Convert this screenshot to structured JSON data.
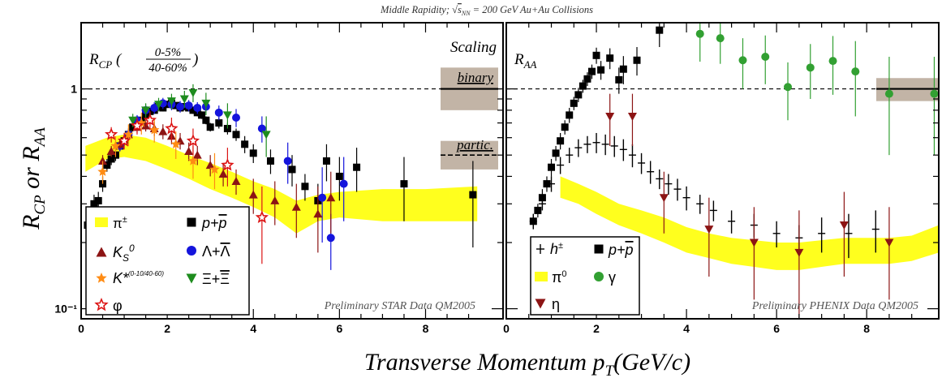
{
  "figure": {
    "top_title": "Middle Rapidity; √s_NN = 200 GeV Au+Au Collisions",
    "ylabel": "R_CP or R_AA",
    "xlabel": "Transverse Momentum p_T(GeV/c)",
    "y_ticks": [
      "10⁻¹",
      "1"
    ],
    "x_ticks": [
      "0",
      "2",
      "4",
      "6",
      "8"
    ]
  },
  "chart_data": [
    {
      "type": "scatter",
      "panel": "left",
      "title": "R_CP (0-5% / 40-60%)",
      "corner_label": "Scaling",
      "band_labels": [
        "binary",
        "partic."
      ],
      "credit": "Preliminary STAR Data QM2005",
      "xlim": [
        0,
        9.8
      ],
      "ylim": [
        0.09,
        2.0
      ],
      "yscale": "log",
      "reference_line": 1.0,
      "bands": [
        {
          "label": "binary",
          "y_center": 1.0,
          "y_low": 0.8,
          "y_high": 1.25
        },
        {
          "label": "partic.",
          "y_center": 0.5,
          "y_low": 0.43,
          "y_high": 0.58
        }
      ],
      "pi_band": {
        "x": [
          0.1,
          0.6,
          1.0,
          1.5,
          2.0,
          2.5,
          3.0,
          3.5,
          4.0,
          4.5,
          5.0,
          5.5,
          6.0,
          7.0,
          8.0,
          9.2
        ],
        "y_low": [
          0.42,
          0.48,
          0.49,
          0.47,
          0.43,
          0.39,
          0.35,
          0.32,
          0.29,
          0.26,
          0.22,
          0.25,
          0.26,
          0.25,
          0.25,
          0.25
        ],
        "y_high": [
          0.55,
          0.6,
          0.62,
          0.6,
          0.55,
          0.5,
          0.46,
          0.42,
          0.38,
          0.35,
          0.31,
          0.33,
          0.34,
          0.35,
          0.35,
          0.36
        ]
      },
      "legend": [
        "π±",
        "p+p̄",
        "K_S^0",
        "Λ+Λ̄",
        "K*(0-10 / 40-60)",
        "Ξ+Ξ̄",
        "φ"
      ],
      "series": [
        {
          "name": "p+p̄",
          "marker": "square",
          "color": "#000000",
          "x": [
            0.15,
            0.3,
            0.4,
            0.5,
            0.6,
            0.7,
            0.8,
            0.9,
            1.0,
            1.1,
            1.2,
            1.3,
            1.4,
            1.5,
            1.6,
            1.7,
            1.8,
            1.9,
            2.0,
            2.1,
            2.2,
            2.3,
            2.4,
            2.5,
            2.6,
            2.7,
            2.8,
            2.9,
            3.0,
            3.2,
            3.4,
            3.6,
            3.8,
            4.0,
            4.4,
            4.9,
            5.2,
            5.5,
            5.7,
            6.0,
            6.4,
            7.5,
            9.1
          ],
          "y": [
            0.24,
            0.3,
            0.31,
            0.37,
            0.45,
            0.48,
            0.5,
            0.55,
            0.58,
            0.62,
            0.67,
            0.7,
            0.72,
            0.76,
            0.79,
            0.8,
            0.83,
            0.82,
            0.85,
            0.86,
            0.84,
            0.82,
            0.83,
            0.82,
            0.8,
            0.78,
            0.76,
            0.72,
            0.67,
            0.7,
            0.66,
            0.62,
            0.56,
            0.51,
            0.47,
            0.43,
            0.36,
            0.31,
            0.47,
            0.4,
            0.44,
            0.37,
            0.33
          ],
          "err": [
            0.03,
            0.03,
            0.03,
            0.03,
            0.03,
            0.03,
            0.03,
            0.03,
            0.03,
            0.03,
            0.03,
            0.03,
            0.03,
            0.03,
            0.03,
            0.03,
            0.03,
            0.03,
            0.03,
            0.03,
            0.03,
            0.03,
            0.03,
            0.03,
            0.03,
            0.03,
            0.03,
            0.03,
            0.03,
            0.04,
            0.04,
            0.04,
            0.05,
            0.05,
            0.06,
            0.07,
            0.05,
            0.06,
            0.09,
            0.09,
            0.1,
            0.12,
            0.14
          ]
        },
        {
          "name": "Λ+Λ̄",
          "marker": "circle",
          "color": "#1414dc",
          "x": [
            0.9,
            1.1,
            1.3,
            1.5,
            1.7,
            1.9,
            2.1,
            2.3,
            2.5,
            2.7,
            2.9,
            3.2,
            3.6,
            4.2,
            4.8,
            5.6,
            5.8,
            6.1
          ],
          "y": [
            0.55,
            0.62,
            0.72,
            0.8,
            0.82,
            0.86,
            0.85,
            0.83,
            0.84,
            0.82,
            0.83,
            0.78,
            0.74,
            0.66,
            0.47,
            0.32,
            0.21,
            0.37
          ],
          "err": [
            0.03,
            0.04,
            0.04,
            0.05,
            0.05,
            0.05,
            0.05,
            0.05,
            0.05,
            0.05,
            0.05,
            0.06,
            0.07,
            0.09,
            0.1,
            0.12,
            0.06,
            0.12
          ]
        },
        {
          "name": "Ξ+Ξ̄",
          "marker": "triangle-down",
          "color": "#1e8c1e",
          "x": [
            1.2,
            1.5,
            1.8,
            2.1,
            2.4,
            2.6,
            2.9,
            3.4,
            4.3
          ],
          "y": [
            0.72,
            0.8,
            0.85,
            0.88,
            0.9,
            0.96,
            0.86,
            0.76,
            0.62
          ],
          "err": [
            0.05,
            0.06,
            0.06,
            0.07,
            0.08,
            0.09,
            0.1,
            0.1,
            0.13
          ]
        },
        {
          "name": "K_S^0",
          "marker": "triangle-up",
          "color": "#8c1414",
          "x": [
            0.5,
            0.7,
            0.9,
            1.1,
            1.3,
            1.5,
            1.7,
            1.9,
            2.1,
            2.3,
            2.5,
            2.7,
            3.0,
            3.3,
            3.6,
            4.0,
            4.5,
            5.0,
            5.5,
            5.8
          ],
          "y": [
            0.47,
            0.52,
            0.56,
            0.62,
            0.67,
            0.68,
            0.66,
            0.64,
            0.61,
            0.58,
            0.52,
            0.5,
            0.45,
            0.41,
            0.38,
            0.33,
            0.31,
            0.29,
            0.27,
            0.32
          ],
          "err": [
            0.03,
            0.03,
            0.03,
            0.04,
            0.04,
            0.04,
            0.05,
            0.05,
            0.05,
            0.05,
            0.05,
            0.05,
            0.05,
            0.05,
            0.05,
            0.06,
            0.07,
            0.08,
            0.09,
            0.1
          ]
        },
        {
          "name": "K*(0-10 / 40-60)",
          "marker": "star",
          "color": "#ff8c14",
          "x": [
            0.5,
            0.8,
            1.1,
            1.4,
            1.7,
            2.2,
            2.6,
            3.1
          ],
          "y": [
            0.42,
            0.55,
            0.62,
            0.7,
            0.65,
            0.56,
            0.47,
            0.43
          ],
          "err": [
            0.05,
            0.06,
            0.07,
            0.08,
            0.08,
            0.08,
            0.08,
            0.08
          ]
        },
        {
          "name": "φ",
          "marker": "star-open",
          "color": "#dc1414",
          "x": [
            0.7,
            1.0,
            1.3,
            1.6,
            2.1,
            2.6,
            3.4,
            4.2
          ],
          "y": [
            0.62,
            0.58,
            0.68,
            0.72,
            0.66,
            0.58,
            0.45,
            0.26
          ],
          "err": [
            0.05,
            0.05,
            0.06,
            0.07,
            0.08,
            0.08,
            0.09,
            0.1
          ]
        }
      ]
    },
    {
      "type": "scatter",
      "panel": "right",
      "title": "R_AA",
      "credit": "Preliminary PHENIX Data QM2005",
      "xlim": [
        0,
        9.6
      ],
      "ylim": [
        0.09,
        2.0
      ],
      "yscale": "log",
      "reference_line": 1.0,
      "bands": [
        {
          "label": "",
          "y_center": 1.0,
          "y_low": 0.88,
          "y_high": 1.12
        }
      ],
      "pi_band": {
        "x": [
          1.2,
          1.6,
          2.0,
          2.5,
          3.0,
          3.5,
          4.0,
          4.5,
          5.0,
          5.5,
          6.0,
          6.5,
          7.0,
          7.5,
          8.0,
          8.5,
          9.0,
          9.6
        ],
        "y_low": [
          0.32,
          0.3,
          0.27,
          0.24,
          0.22,
          0.2,
          0.18,
          0.17,
          0.16,
          0.155,
          0.15,
          0.15,
          0.155,
          0.16,
          0.16,
          0.16,
          0.165,
          0.18
        ],
        "y_high": [
          0.4,
          0.37,
          0.34,
          0.3,
          0.28,
          0.26,
          0.235,
          0.22,
          0.21,
          0.205,
          0.2,
          0.2,
          0.205,
          0.21,
          0.21,
          0.21,
          0.215,
          0.24
        ]
      },
      "legend": [
        "h±",
        "p+p̄",
        "π⁰",
        "γ",
        "η"
      ],
      "series": [
        {
          "name": "p+p̄",
          "marker": "square",
          "color": "#000000",
          "x": [
            0.6,
            0.7,
            0.8,
            0.9,
            1.0,
            1.1,
            1.2,
            1.3,
            1.4,
            1.5,
            1.6,
            1.7,
            1.8,
            1.9,
            2.0,
            2.1,
            2.3,
            2.5,
            2.6,
            2.9,
            3.4
          ],
          "y": [
            0.25,
            0.28,
            0.32,
            0.37,
            0.44,
            0.51,
            0.58,
            0.67,
            0.76,
            0.86,
            0.94,
            1.03,
            1.11,
            1.2,
            1.42,
            1.22,
            1.38,
            1.1,
            1.23,
            1.35,
            1.85
          ],
          "err": [
            0.02,
            0.02,
            0.03,
            0.03,
            0.04,
            0.04,
            0.05,
            0.05,
            0.06,
            0.06,
            0.07,
            0.07,
            0.08,
            0.09,
            0.12,
            0.12,
            0.15,
            0.15,
            0.18,
            0.2,
            0.3
          ]
        },
        {
          "name": "h±",
          "marker": "cross",
          "color": "#000000",
          "x": [
            0.6,
            0.8,
            1.0,
            1.2,
            1.4,
            1.6,
            1.8,
            2.0,
            2.2,
            2.4,
            2.6,
            2.8,
            3.0,
            3.2,
            3.4,
            3.6,
            3.8,
            4.0,
            4.3,
            4.6,
            5.0,
            5.5,
            6.0,
            6.5,
            7.0,
            7.6,
            8.2
          ],
          "y": [
            0.25,
            0.3,
            0.37,
            0.45,
            0.5,
            0.54,
            0.56,
            0.57,
            0.56,
            0.55,
            0.53,
            0.5,
            0.46,
            0.42,
            0.39,
            0.37,
            0.35,
            0.32,
            0.3,
            0.28,
            0.25,
            0.24,
            0.22,
            0.21,
            0.22,
            0.22,
            0.23
          ],
          "err": [
            0.02,
            0.02,
            0.03,
            0.04,
            0.04,
            0.05,
            0.05,
            0.06,
            0.06,
            0.06,
            0.06,
            0.06,
            0.05,
            0.05,
            0.04,
            0.04,
            0.04,
            0.04,
            0.03,
            0.03,
            0.03,
            0.03,
            0.03,
            0.03,
            0.04,
            0.05,
            0.05
          ]
        },
        {
          "name": "η",
          "marker": "triangle-down",
          "color": "#8c1414",
          "x": [
            2.3,
            2.8,
            3.5,
            4.5,
            5.5,
            6.5,
            7.5,
            8.5
          ],
          "y": [
            0.75,
            0.75,
            0.32,
            0.23,
            0.2,
            0.18,
            0.24,
            0.2
          ],
          "err": [
            0.2,
            0.2,
            0.1,
            0.09,
            0.09,
            0.1,
            0.1,
            0.09
          ]
        },
        {
          "name": "γ",
          "marker": "circle",
          "color": "#32a032",
          "x": [
            4.3,
            4.75,
            5.25,
            5.75,
            6.25,
            6.75,
            7.25,
            7.75,
            8.5,
            9.5
          ],
          "y": [
            1.78,
            1.7,
            1.35,
            1.4,
            1.02,
            1.25,
            1.34,
            1.2,
            0.95,
            0.95
          ],
          "err": [
            0.45,
            0.4,
            0.35,
            0.35,
            0.3,
            0.35,
            0.4,
            0.45,
            0.45,
            0.45
          ]
        }
      ]
    }
  ]
}
